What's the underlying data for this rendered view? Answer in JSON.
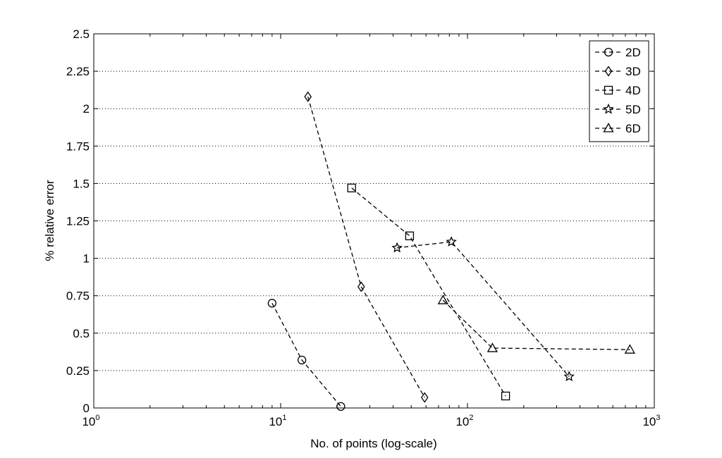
{
  "chart_data": {
    "type": "line",
    "title": "",
    "xlabel": "No. of points (log-scale)",
    "ylabel": "% relative error",
    "x_scale": "log",
    "xlim": [
      1,
      1000
    ],
    "ylim": [
      0,
      2.5
    ],
    "x_ticks": [
      {
        "value": 1,
        "base": "10",
        "exp": "0"
      },
      {
        "value": 10,
        "base": "10",
        "exp": "1"
      },
      {
        "value": 100,
        "base": "10",
        "exp": "2"
      },
      {
        "value": 1000,
        "base": "10",
        "exp": "3"
      }
    ],
    "y_ticks": [
      {
        "value": 0,
        "label": "0"
      },
      {
        "value": 0.25,
        "label": "0.25"
      },
      {
        "value": 0.5,
        "label": "0.5"
      },
      {
        "value": 0.75,
        "label": "0.75"
      },
      {
        "value": 1,
        "label": "1"
      },
      {
        "value": 1.25,
        "label": "1.25"
      },
      {
        "value": 1.5,
        "label": "1.5"
      },
      {
        "value": 1.75,
        "label": "1.75"
      },
      {
        "value": 2,
        "label": "2"
      },
      {
        "value": 2.25,
        "label": "2.25"
      },
      {
        "value": 2.5,
        "label": "2.5"
      }
    ],
    "grid": "horizontal-dotted",
    "legend_position": "top-right",
    "line_style": "dashed",
    "color": "#000000",
    "series": [
      {
        "name": "2D",
        "marker": "circle",
        "x": [
          9,
          13,
          21
        ],
        "y": [
          0.7,
          0.32,
          0.01
        ]
      },
      {
        "name": "3D",
        "marker": "diamond",
        "x": [
          14,
          27,
          59
        ],
        "y": [
          2.08,
          0.81,
          0.07
        ]
      },
      {
        "name": "4D",
        "marker": "square",
        "x": [
          24,
          49,
          160
        ],
        "y": [
          1.47,
          1.15,
          0.08
        ]
      },
      {
        "name": "5D",
        "marker": "star",
        "x": [
          42,
          82,
          350
        ],
        "y": [
          1.07,
          1.11,
          0.21
        ]
      },
      {
        "name": "6D",
        "marker": "triangle",
        "x": [
          74,
          136,
          740
        ],
        "y": [
          0.72,
          0.4,
          0.39
        ]
      }
    ]
  }
}
